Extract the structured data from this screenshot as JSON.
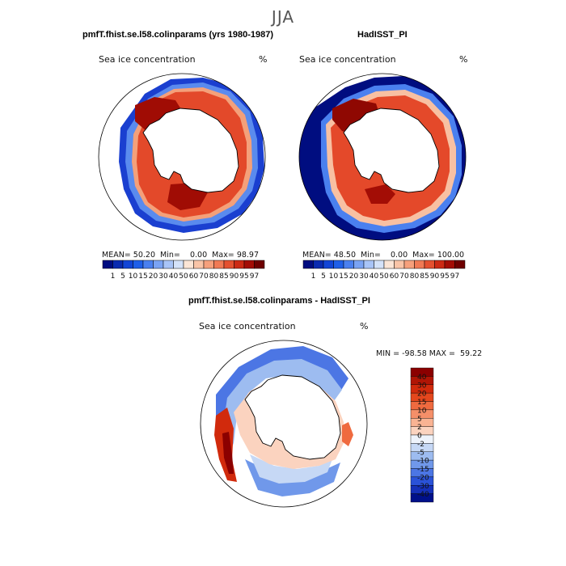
{
  "season": "JJA",
  "chart_data": [
    {
      "type": "heatmap",
      "title": "pmfT.fhist.se.l58.colinparams (yrs 1980-1987)",
      "variable": "Sea ice concentration",
      "units": "%",
      "stats": {
        "mean_label": "MEAN=",
        "mean": "50.20",
        "min_label": "Min=",
        "min": "0.00",
        "max_label": "Max=",
        "max": "98.97"
      },
      "colorbar_ticks": [
        "1",
        "5",
        "10",
        "15",
        "20",
        "30",
        "40",
        "50",
        "60",
        "70",
        "80",
        "85",
        "90",
        "95",
        "97"
      ],
      "colorbar_colors": [
        "#000d80",
        "#0a2bb0",
        "#1245d6",
        "#1f5fe8",
        "#4a80ef",
        "#7aa3f3",
        "#a8c4f7",
        "#d4e2f9",
        "#fbe5d6",
        "#f9c4a7",
        "#f6a07c",
        "#f07a55",
        "#e45130",
        "#cc2a14",
        "#a30d05",
        "#6e0000"
      ]
    },
    {
      "type": "heatmap",
      "title": "HadISST_PI",
      "variable": "Sea ice concentration",
      "units": "%",
      "stats": {
        "mean_label": "MEAN=",
        "mean": "48.50",
        "min_label": "Min=",
        "min": "0.00",
        "max_label": "Max=",
        "max": "100.00"
      },
      "colorbar_ticks": [
        "1",
        "5",
        "10",
        "15",
        "20",
        "30",
        "40",
        "50",
        "60",
        "70",
        "80",
        "85",
        "90",
        "95",
        "97"
      ],
      "colorbar_colors": [
        "#000d80",
        "#0a2bb0",
        "#1245d6",
        "#1f5fe8",
        "#4a80ef",
        "#7aa3f3",
        "#a8c4f7",
        "#d4e2f9",
        "#fbe5d6",
        "#f9c4a7",
        "#f6a07c",
        "#f07a55",
        "#e45130",
        "#cc2a14",
        "#a30d05",
        "#6e0000"
      ]
    },
    {
      "type": "heatmap",
      "title": "pmfT.fhist.se.l58.colinparams - HadISST_PI",
      "variable": "Sea ice concentration",
      "units": "%",
      "stats": {
        "min_label": "MIN =",
        "min": "-98.58",
        "max_label": "MAX =",
        "max": "59.22"
      },
      "colorbar_ticks": [
        "40",
        "30",
        "20",
        "15",
        "10",
        "5",
        "2",
        "0",
        "-2",
        "-5",
        "-10",
        "-15",
        "-20",
        "-30",
        "-40"
      ],
      "colorbar_colors": [
        "#8b0000",
        "#b01505",
        "#d12a0c",
        "#e4471d",
        "#ef6a3f",
        "#f58f69",
        "#f9b393",
        "#fbd3bf",
        "#eef3fb",
        "#c6d8f5",
        "#9dbcf0",
        "#7098ea",
        "#4c76e4",
        "#2a52d8",
        "#1530b8",
        "#00108a"
      ]
    }
  ]
}
